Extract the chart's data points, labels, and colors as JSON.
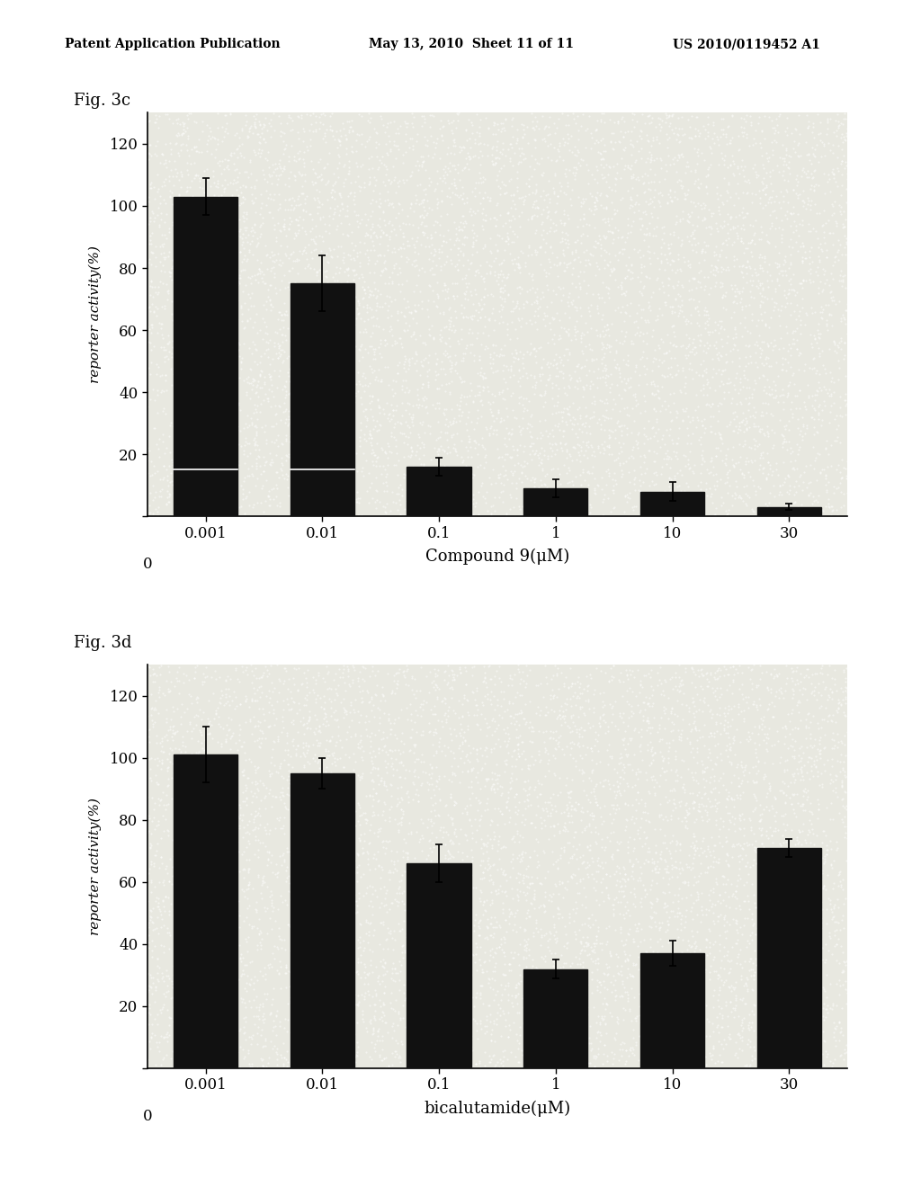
{
  "header_left": "Patent Application Publication",
  "header_mid": "May 13, 2010  Sheet 11 of 11",
  "header_right": "US 2010/0119452 A1",
  "fig3c": {
    "label": "Fig. 3c",
    "categories": [
      "0.001",
      "0.01",
      "0.1",
      "1",
      "10",
      "30"
    ],
    "values": [
      103,
      75,
      16,
      9,
      8,
      3
    ],
    "errors": [
      6,
      9,
      3,
      3,
      3,
      1
    ],
    "ylabel": "reporter activity(%)",
    "xlabel": "Compound 9(μM)",
    "ylim": [
      0,
      130
    ],
    "yticks": [
      0,
      20,
      40,
      60,
      80,
      100,
      120
    ],
    "bar_color": "#111111",
    "white_line_bar": [
      0,
      1
    ],
    "white_line_value": 15
  },
  "fig3d": {
    "label": "Fig. 3d",
    "categories": [
      "0.001",
      "0.01",
      "0.1",
      "1",
      "10",
      "30"
    ],
    "values": [
      101,
      95,
      66,
      32,
      37,
      71
    ],
    "errors": [
      9,
      5,
      6,
      3,
      4,
      3
    ],
    "ylabel": "reporter activity(%)",
    "xlabel": "bicalutamide(μM)",
    "ylim": [
      0,
      130
    ],
    "yticks": [
      0,
      20,
      40,
      60,
      80,
      100,
      120
    ],
    "bar_color": "#111111"
  },
  "background_color": "#ffffff",
  "plot_bg_color": "#e8e8e0",
  "fig_width": 10.24,
  "fig_height": 13.2
}
